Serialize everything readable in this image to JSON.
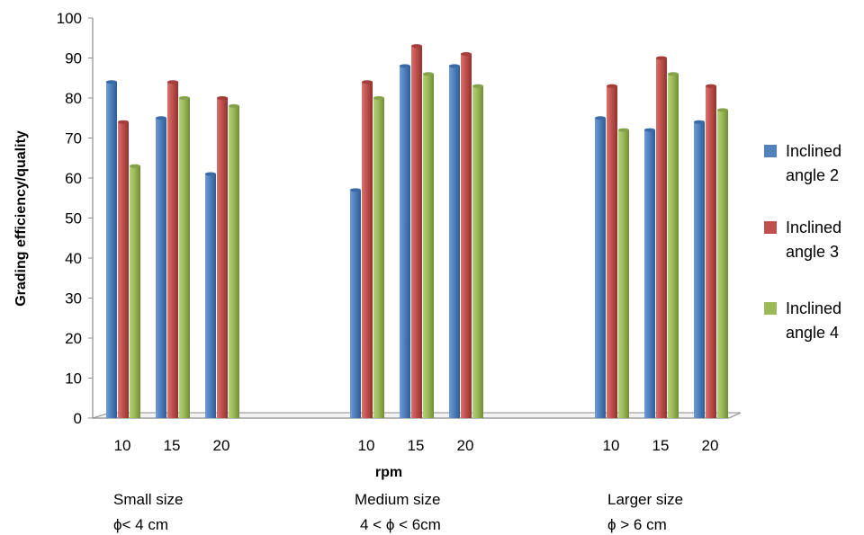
{
  "chart_data": {
    "type": "bar",
    "ylabel": "Grading efficiency/quality",
    "xlabel": "rpm",
    "ylim": [
      0,
      100
    ],
    "yticks": [
      0,
      10,
      20,
      30,
      40,
      50,
      60,
      70,
      80,
      90,
      100
    ],
    "groups": [
      {
        "label_line1": "Small size",
        "label_line2": "ϕ< 4 cm",
        "categories": [
          "10",
          "15",
          "20"
        ]
      },
      {
        "label_line1": "Medium size",
        "label_line2": "4 < ϕ <  6cm",
        "categories": [
          "10",
          "15",
          "20"
        ]
      },
      {
        "label_line1": "Larger size",
        "label_line2": "ϕ > 6 cm",
        "categories": [
          "10",
          "15",
          "20"
        ]
      }
    ],
    "series": [
      {
        "name_line1": "Inclined",
        "name_line2": "angle 2",
        "color": "#4F81BD",
        "values": [
          84,
          75,
          61,
          57,
          88,
          88,
          75,
          72,
          74
        ]
      },
      {
        "name_line1": "Inclined",
        "name_line2": "angle 3",
        "color": "#C0504D",
        "values": [
          74,
          84,
          80,
          84,
          93,
          91,
          83,
          90,
          83
        ]
      },
      {
        "name_line1": "Inclined",
        "name_line2": "angle 4",
        "color": "#9BBB59",
        "values": [
          63,
          80,
          78,
          80,
          86,
          83,
          72,
          86,
          77
        ]
      }
    ],
    "legend_position": "right",
    "grid": false
  }
}
